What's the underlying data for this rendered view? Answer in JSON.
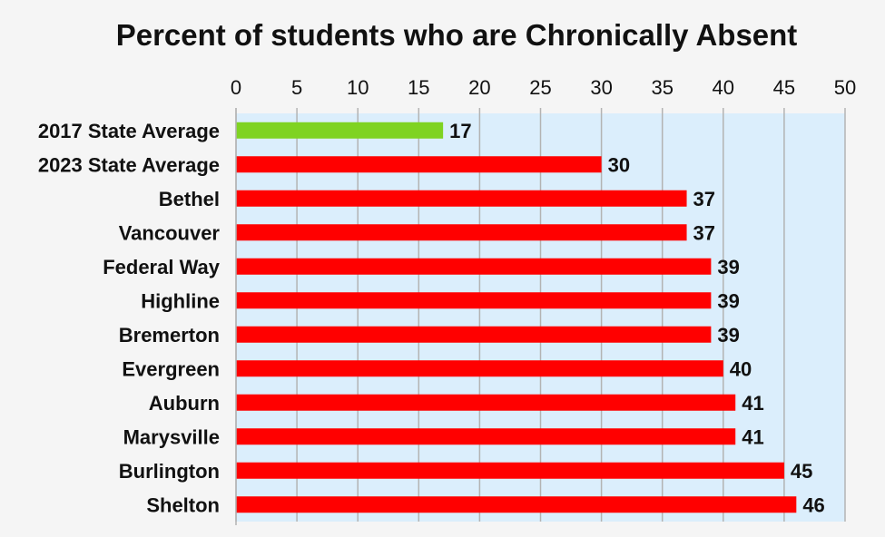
{
  "chart_data": {
    "type": "bar",
    "orientation": "horizontal",
    "title": "Percent of students who are Chronically Absent",
    "xlabel": "",
    "ylabel": "",
    "xlim": [
      0,
      50
    ],
    "ticks": [
      0,
      5,
      10,
      15,
      20,
      25,
      30,
      35,
      40,
      45,
      50
    ],
    "axis_position": "top",
    "grid": true,
    "legend": "none",
    "categories": [
      "2017 State Average",
      "2023 State Average",
      "Bethel",
      "Vancouver",
      "Federal Way",
      "Highline",
      "Bremerton",
      "Evergreen",
      "Auburn",
      "Marysville",
      "Burlington",
      "Shelton"
    ],
    "values": [
      17,
      30,
      37,
      37,
      39,
      39,
      39,
      40,
      41,
      41,
      45,
      46
    ],
    "bar_colors": [
      "#7fd322",
      "#ff0000",
      "#ff0000",
      "#ff0000",
      "#ff0000",
      "#ff0000",
      "#ff0000",
      "#ff0000",
      "#ff0000",
      "#ff0000",
      "#ff0000",
      "#ff0000"
    ],
    "plot_background": "#dbeefc",
    "gridline_color": "#b3b3b3"
  }
}
